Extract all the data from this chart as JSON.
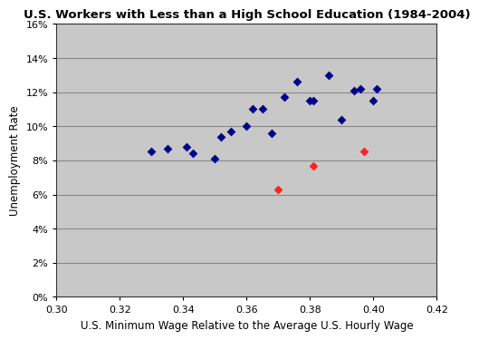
{
  "title": "U.S. Workers with Less than a High School Education (1984-2004)",
  "xlabel": "U.S. Minimum Wage Relative to the Average U.S. Hourly Wage",
  "ylabel": "Unemployment Rate",
  "xlim": [
    0.3,
    0.42
  ],
  "ylim": [
    0.0,
    0.16
  ],
  "xticks": [
    0.3,
    0.32,
    0.34,
    0.36,
    0.38,
    0.4,
    0.42
  ],
  "yticks": [
    0.0,
    0.02,
    0.04,
    0.06,
    0.08,
    0.1,
    0.12,
    0.14,
    0.16
  ],
  "ytick_labels": [
    "0%",
    "2%",
    "4%",
    "6%",
    "8%",
    "10%",
    "12%",
    "14%",
    "16%"
  ],
  "blue_x": [
    0.33,
    0.335,
    0.341,
    0.343,
    0.35,
    0.352,
    0.355,
    0.36,
    0.362,
    0.365,
    0.368,
    0.372,
    0.376,
    0.38,
    0.381,
    0.386,
    0.39,
    0.394,
    0.396,
    0.4,
    0.401
  ],
  "blue_y": [
    0.085,
    0.087,
    0.088,
    0.084,
    0.081,
    0.094,
    0.097,
    0.1,
    0.11,
    0.11,
    0.096,
    0.117,
    0.126,
    0.115,
    0.115,
    0.13,
    0.104,
    0.121,
    0.122,
    0.115,
    0.122
  ],
  "red_x": [
    0.37,
    0.381,
    0.397
  ],
  "red_y": [
    0.063,
    0.077,
    0.085
  ],
  "blue_color": "#00008B",
  "red_color": "#FF2222",
  "bg_color": "#C8C8C8",
  "fig_bg_color": "#FFFFFF",
  "marker": "D",
  "marker_size": 5,
  "title_fontsize": 9.5,
  "label_fontsize": 8.5,
  "tick_fontsize": 8,
  "grid_color": "#888888",
  "grid_linewidth": 0.8,
  "spine_color": "#333333"
}
